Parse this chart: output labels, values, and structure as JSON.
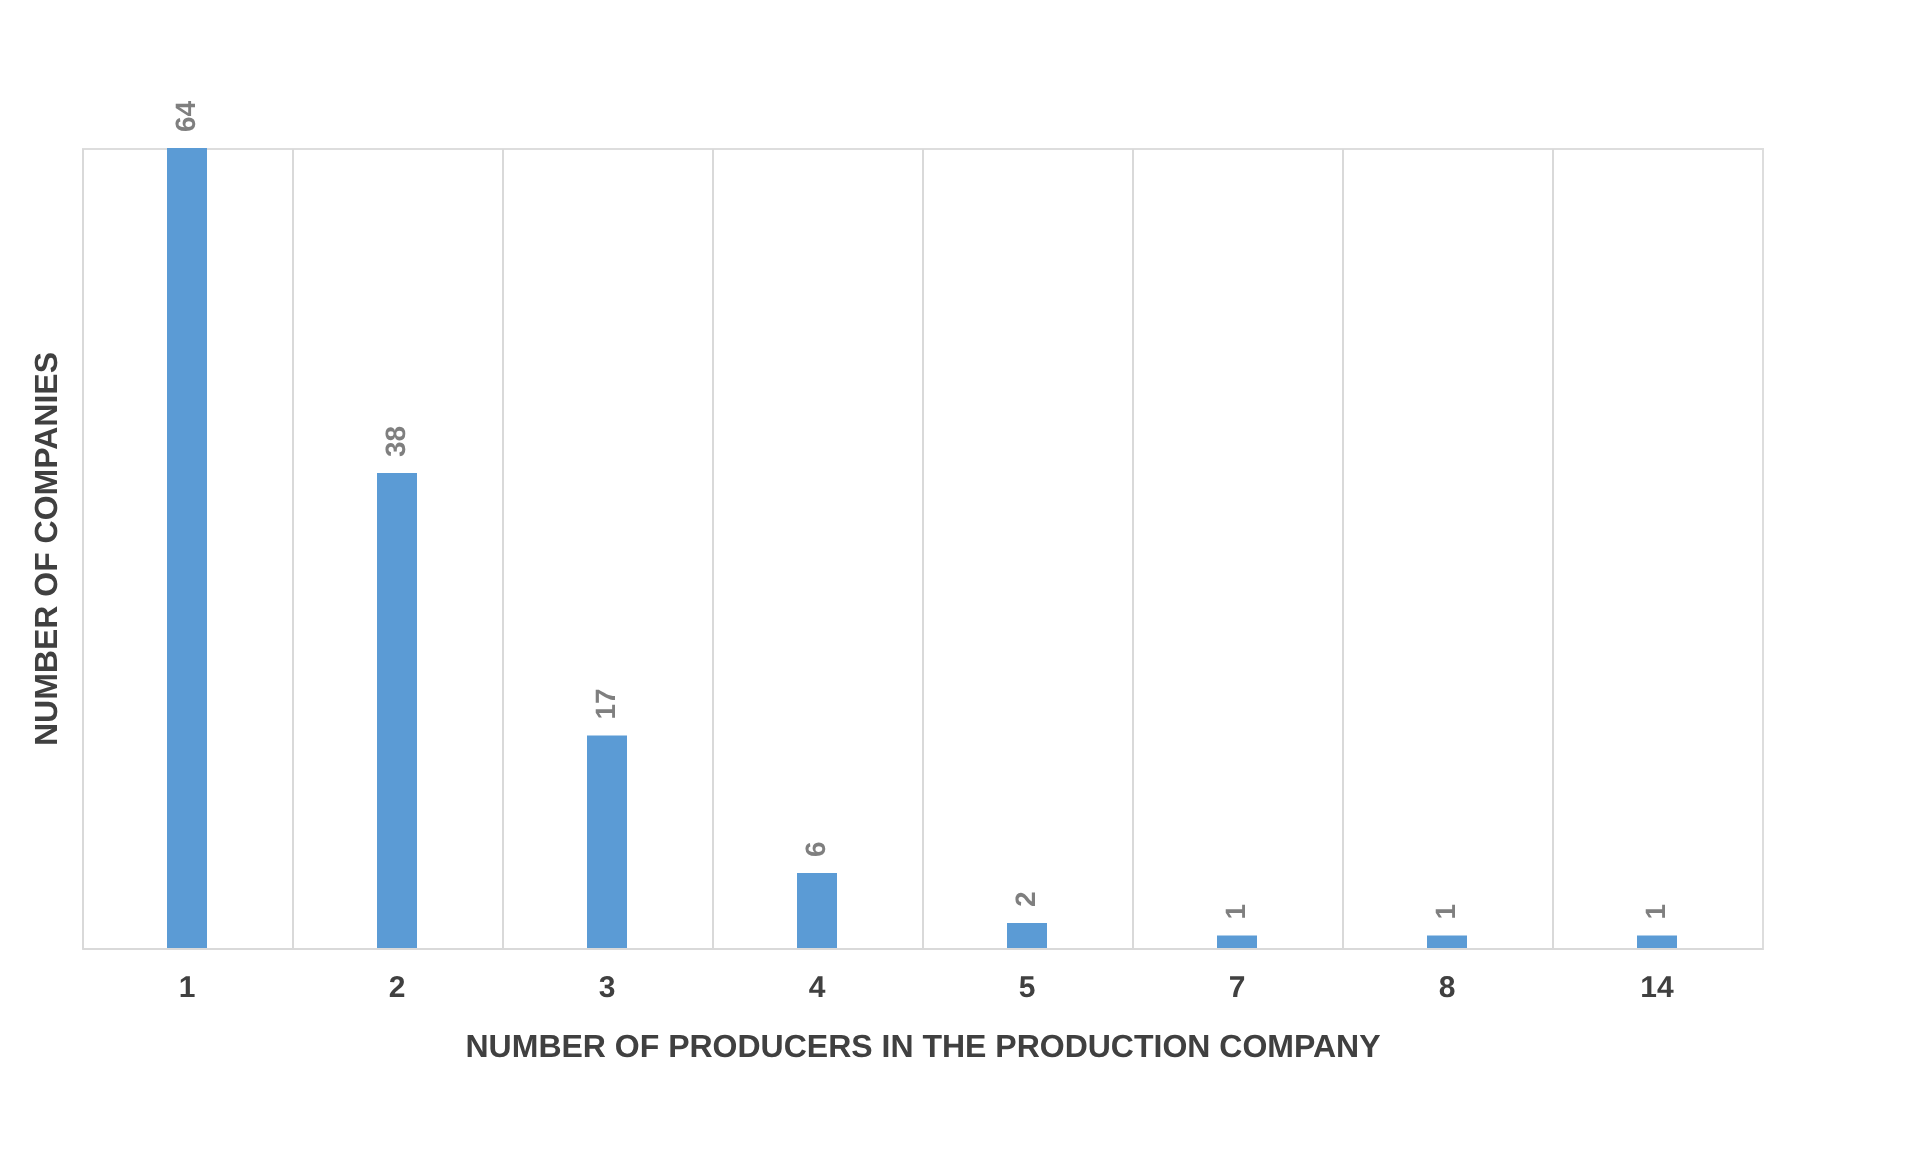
{
  "chart_data": {
    "type": "bar",
    "xlabel": "NUMBER OF PRODUCERS IN THE PRODUCTION COMPANY",
    "ylabel": "NUMBER OF COMPANIES",
    "categories": [
      "1",
      "2",
      "3",
      "4",
      "5",
      "7",
      "8",
      "14"
    ],
    "values": [
      64,
      38,
      17,
      6,
      2,
      1,
      1,
      1
    ],
    "color": "#5b9bd5",
    "data_labels": true,
    "grid": "x"
  }
}
